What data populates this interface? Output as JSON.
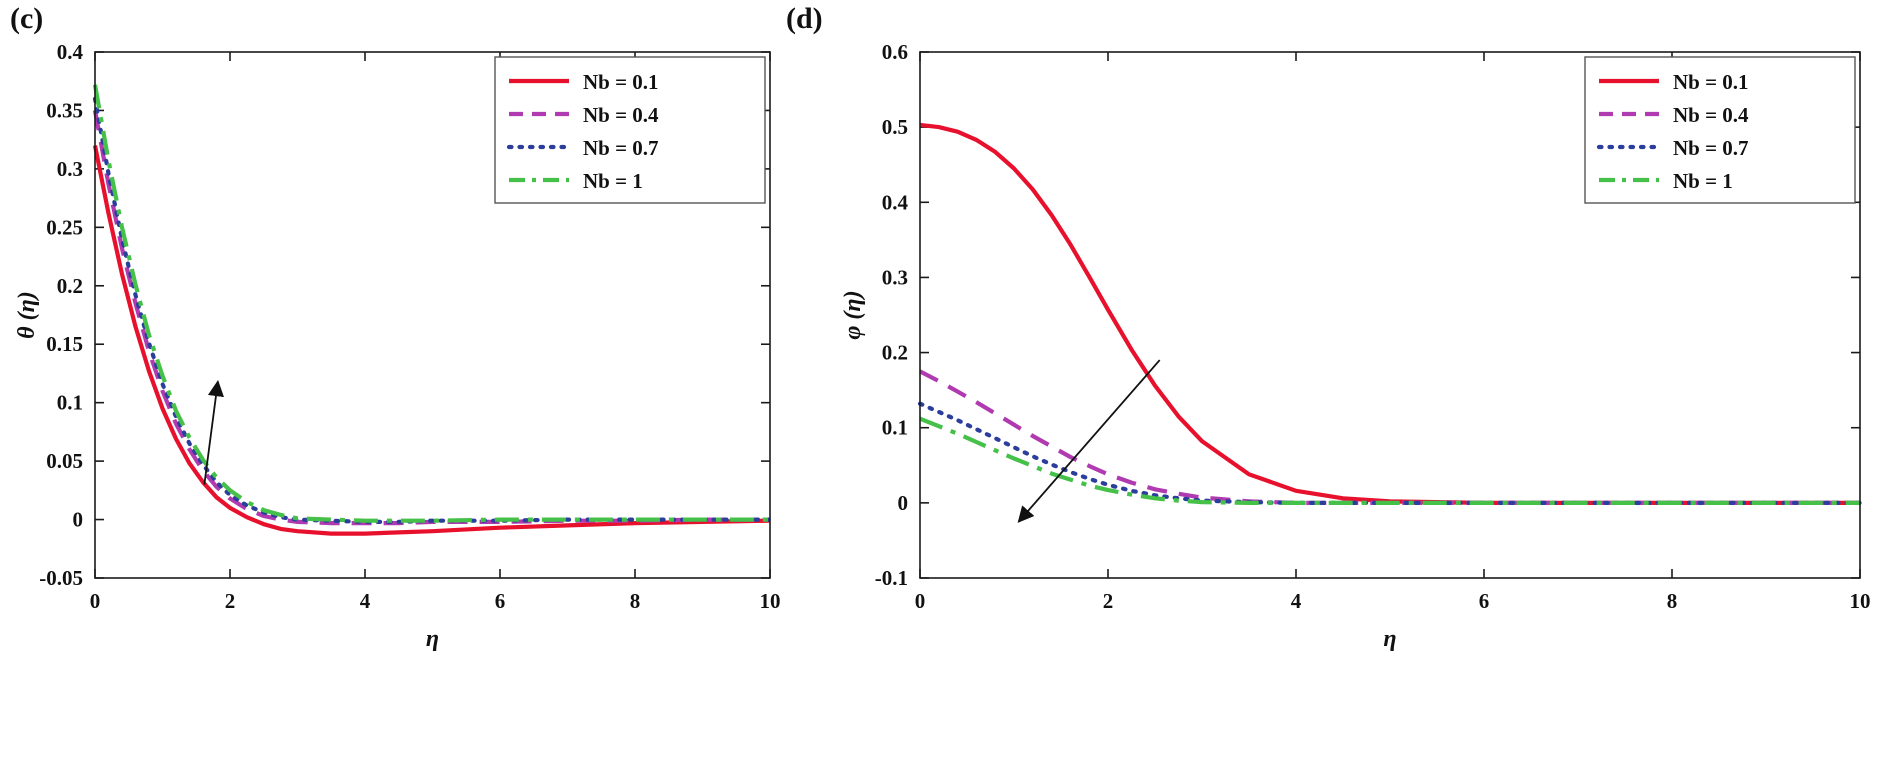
{
  "figure": {
    "background": "#ffffff",
    "axis_color": "#1a1a1a",
    "arrow_color": "#111111"
  },
  "chart_data": [
    {
      "type": "line",
      "panel_label": "(c)",
      "title": "",
      "xlabel": "η",
      "ylabel": "θ (η)",
      "xlim": [
        0,
        10
      ],
      "ylim": [
        -0.05,
        0.4
      ],
      "grid": false,
      "legend_position": "top-right",
      "xticks": [
        0,
        2,
        4,
        6,
        8,
        10
      ],
      "xtick_labels": [
        "0",
        "2",
        "4",
        "6",
        "8",
        "10"
      ],
      "yticks": [
        -0.05,
        0,
        0.05,
        0.1,
        0.15,
        0.2,
        0.25,
        0.3,
        0.35,
        0.4
      ],
      "ytick_labels": [
        "-0.05",
        "0",
        "0.05",
        "0.1",
        "0.15",
        "0.2",
        "0.25",
        "0.3",
        "0.35",
        "0.4"
      ],
      "x": [
        0,
        0.2,
        0.4,
        0.6,
        0.8,
        1,
        1.2,
        1.4,
        1.6,
        1.8,
        2,
        2.25,
        2.5,
        2.75,
        3,
        3.5,
        4,
        4.5,
        5,
        6,
        7,
        8,
        9,
        10
      ],
      "series": [
        {
          "name": "Nb = 0.1",
          "color": "#e8112d",
          "line_style": "solid",
          "values": [
            0.32,
            0.262,
            0.21,
            0.165,
            0.127,
            0.095,
            0.069,
            0.048,
            0.032,
            0.019,
            0.01,
            0.002,
            -0.004,
            -0.008,
            -0.01,
            -0.012,
            -0.012,
            -0.011,
            -0.01,
            -0.007,
            -0.005,
            -0.003,
            -0.002,
            -0.001
          ]
        },
        {
          "name": "Nb = 0.4",
          "color": "#b03ab0",
          "line_style": "dashed",
          "values": [
            0.35,
            0.287,
            0.232,
            0.185,
            0.144,
            0.11,
            0.082,
            0.06,
            0.042,
            0.028,
            0.018,
            0.009,
            0.003,
            0.0,
            -0.002,
            -0.003,
            -0.003,
            -0.003,
            -0.002,
            -0.002,
            -0.001,
            -0.001,
            0.0,
            0.0
          ]
        },
        {
          "name": "Nb = 0.7",
          "color": "#2c3e9c",
          "line_style": "dotted",
          "values": [
            0.36,
            0.296,
            0.24,
            0.192,
            0.151,
            0.116,
            0.088,
            0.065,
            0.047,
            0.032,
            0.021,
            0.012,
            0.006,
            0.002,
            0.0,
            -0.001,
            -0.002,
            -0.002,
            -0.001,
            -0.001,
            0.0,
            0.0,
            0.0,
            0.0
          ]
        },
        {
          "name": "Nb = 1",
          "color": "#45c048",
          "line_style": "dashdot",
          "values": [
            0.372,
            0.307,
            0.25,
            0.201,
            0.158,
            0.123,
            0.093,
            0.07,
            0.051,
            0.036,
            0.025,
            0.015,
            0.008,
            0.004,
            0.001,
            0.0,
            -0.001,
            -0.001,
            -0.001,
            0.0,
            0.0,
            0.0,
            0.0,
            0.0
          ]
        }
      ],
      "annotation_arrow": {
        "from": [
          1.62,
          0.03
        ],
        "to": [
          1.82,
          0.118
        ]
      }
    },
    {
      "type": "line",
      "panel_label": "(d)",
      "title": "",
      "xlabel": "η",
      "ylabel": "φ (η)",
      "xlim": [
        0,
        10
      ],
      "ylim": [
        -0.1,
        0.6
      ],
      "grid": false,
      "legend_position": "top-right",
      "xticks": [
        0,
        2,
        4,
        6,
        8,
        10
      ],
      "xtick_labels": [
        "0",
        "2",
        "4",
        "6",
        "8",
        "10"
      ],
      "yticks": [
        -0.1,
        0,
        0.1,
        0.2,
        0.3,
        0.4,
        0.5,
        0.6
      ],
      "ytick_labels": [
        "-0.1",
        "0",
        "0.1",
        "0.2",
        "0.3",
        "0.4",
        "0.5",
        "0.6"
      ],
      "x": [
        0,
        0.2,
        0.4,
        0.6,
        0.8,
        1,
        1.2,
        1.4,
        1.6,
        1.8,
        2,
        2.25,
        2.5,
        2.75,
        3,
        3.5,
        4,
        4.5,
        5,
        6,
        7,
        8,
        9,
        10
      ],
      "series": [
        {
          "name": "Nb = 0.1",
          "color": "#e8112d",
          "line_style": "solid",
          "values": [
            0.503,
            0.5,
            0.494,
            0.483,
            0.467,
            0.445,
            0.417,
            0.383,
            0.344,
            0.301,
            0.257,
            0.204,
            0.156,
            0.115,
            0.082,
            0.038,
            0.016,
            0.006,
            0.002,
            0.0,
            0.0,
            0.0,
            0.0,
            0.0
          ]
        },
        {
          "name": "Nb = 0.4",
          "color": "#b03ab0",
          "line_style": "dashed",
          "values": [
            0.175,
            0.162,
            0.148,
            0.134,
            0.119,
            0.104,
            0.089,
            0.075,
            0.061,
            0.049,
            0.038,
            0.027,
            0.018,
            0.012,
            0.007,
            0.002,
            0.0,
            0.0,
            0.0,
            0.0,
            0.0,
            0.0,
            0.0,
            0.0
          ]
        },
        {
          "name": "Nb = 0.7",
          "color": "#2c3e9c",
          "line_style": "dotted",
          "values": [
            0.132,
            0.121,
            0.11,
            0.098,
            0.086,
            0.074,
            0.062,
            0.051,
            0.041,
            0.032,
            0.024,
            0.016,
            0.01,
            0.006,
            0.003,
            0.001,
            0.0,
            0.0,
            0.0,
            0.0,
            0.0,
            0.0,
            0.0,
            0.0
          ]
        },
        {
          "name": "Nb = 1",
          "color": "#45c048",
          "line_style": "dashdot",
          "values": [
            0.112,
            0.102,
            0.092,
            0.081,
            0.07,
            0.059,
            0.049,
            0.039,
            0.031,
            0.023,
            0.017,
            0.011,
            0.006,
            0.003,
            0.001,
            0.0,
            0.0,
            0.0,
            0.0,
            0.0,
            0.0,
            0.0,
            0.0,
            0.0
          ]
        }
      ],
      "annotation_arrow": {
        "from": [
          2.55,
          0.19
        ],
        "to": [
          1.05,
          -0.025
        ]
      }
    }
  ]
}
